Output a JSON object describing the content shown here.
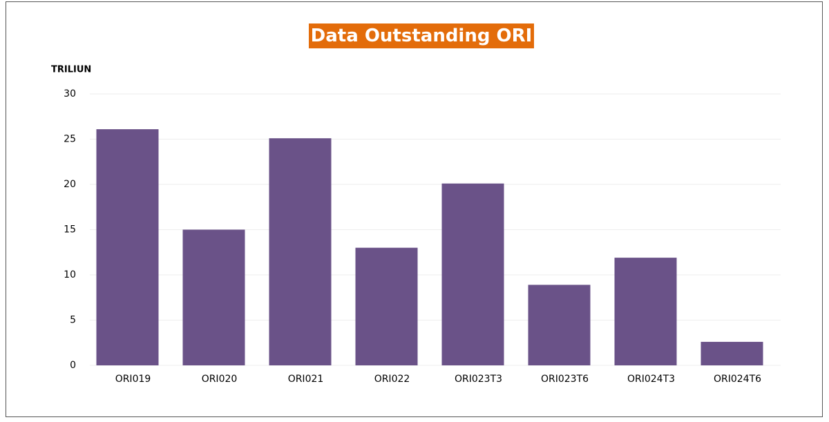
{
  "chart_data": {
    "type": "bar",
    "title": "Data Outstanding ORI",
    "y_label": "TRILIUN",
    "categories": [
      "ORI019",
      "ORI020",
      "ORI021",
      "ORI022",
      "ORI023T3",
      "ORI023T6",
      "ORI024T3",
      "ORI024T6"
    ],
    "values": [
      26.1,
      15,
      25.1,
      13,
      20.1,
      8.9,
      11.9,
      2.6
    ],
    "color": "#6a5288",
    "ylim": [
      0,
      30
    ],
    "yticks": [
      0,
      5,
      10,
      15,
      20,
      25,
      30
    ],
    "grid": true
  }
}
